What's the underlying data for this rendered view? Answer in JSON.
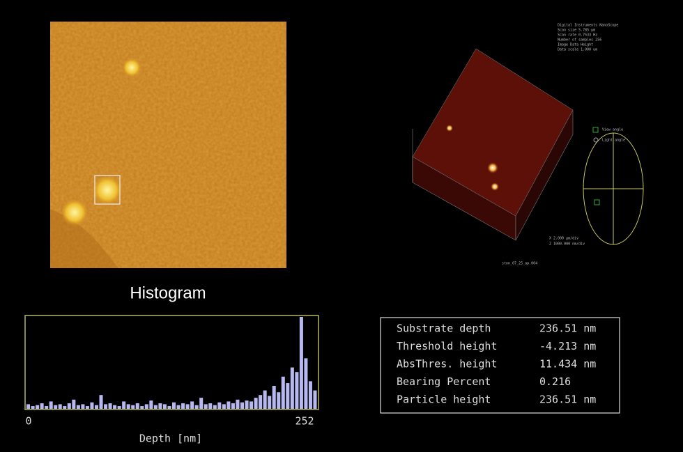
{
  "histogram": {
    "title": "Histogram",
    "x_min_label": "0",
    "x_max_label": "252",
    "x_label": "Depth [nm]",
    "counts": [
      5,
      3,
      4,
      6,
      3,
      8,
      4,
      5,
      3,
      6,
      10,
      4,
      5,
      3,
      7,
      4,
      15,
      5,
      6,
      4,
      3,
      8,
      5,
      4,
      6,
      3,
      5,
      9,
      4,
      6,
      5,
      3,
      7,
      4,
      6,
      5,
      8,
      4,
      12,
      5,
      6,
      4,
      7,
      5,
      8,
      6,
      10,
      7,
      9,
      8,
      12,
      15,
      20,
      14,
      25,
      18,
      35,
      28,
      45,
      40,
      100,
      55,
      30,
      20
    ]
  },
  "view3d": {
    "info": [
      "Digital Instruments NanoScope",
      "Scan size 5.785 µm",
      "Scan rate 0.7533 Hz",
      "Number of samples 256",
      "Image Data Height",
      "Data scale 1.000 um"
    ],
    "view_angle": "View angle",
    "light_angle": "Light angle",
    "x_scale": "X 2.000 µm/div",
    "z_scale": "Z 1000.000 nm/div",
    "file": "stnn_07_25_ap.004"
  },
  "table": {
    "rows": [
      [
        "Substrate depth",
        "236.51 nm"
      ],
      [
        "Threshold height",
        "-4.213 nm"
      ],
      [
        "AbsThres. height",
        "11.434 nm"
      ],
      [
        "Bearing Percent",
        "0.216"
      ],
      [
        "Particle height",
        "236.51 nm"
      ]
    ]
  }
}
